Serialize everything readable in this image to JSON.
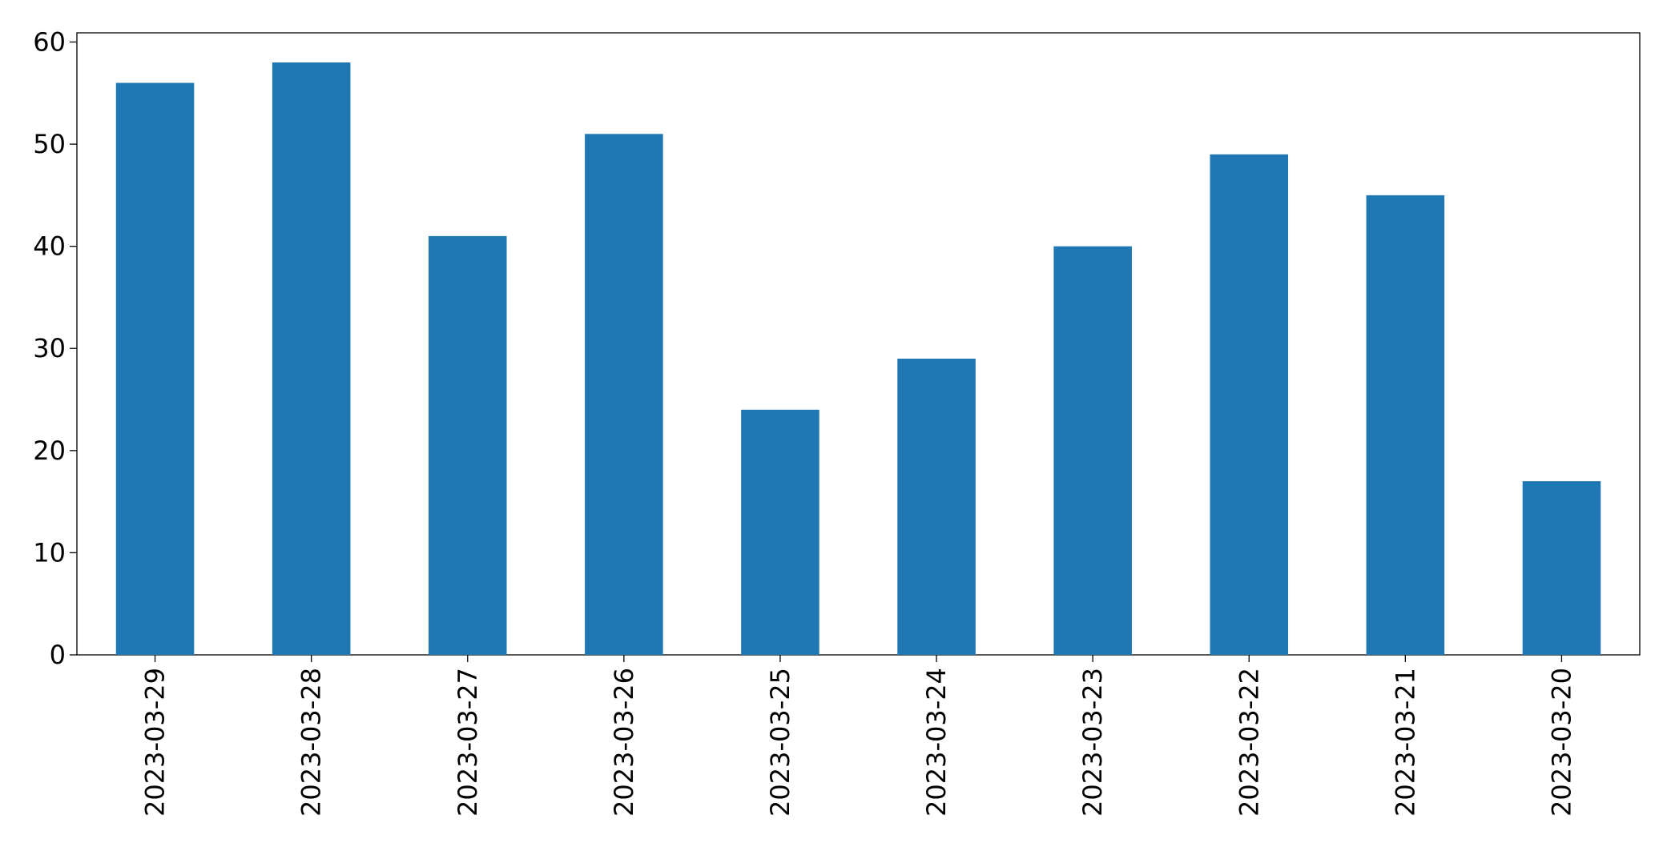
{
  "chart_data": {
    "type": "bar",
    "categories": [
      "2023-03-29",
      "2023-03-28",
      "2023-03-27",
      "2023-03-26",
      "2023-03-25",
      "2023-03-24",
      "2023-03-23",
      "2023-03-22",
      "2023-03-21",
      "2023-03-20"
    ],
    "values": [
      56,
      58,
      41,
      51,
      24,
      29,
      40,
      49,
      45,
      17
    ],
    "color": "#1f77b4",
    "ylim": [
      0,
      60.9
    ],
    "yticks": [
      0,
      10,
      20,
      30,
      40,
      50,
      60
    ],
    "grid": false
  }
}
